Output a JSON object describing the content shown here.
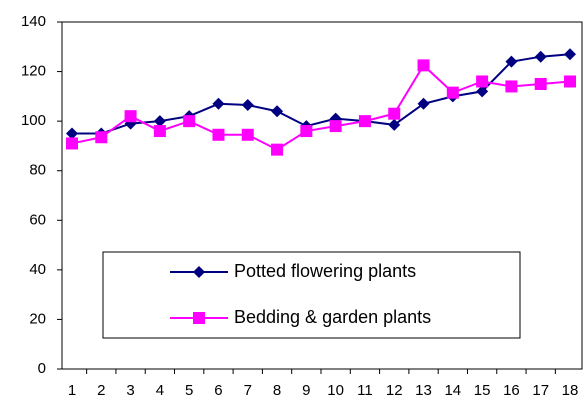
{
  "chart_data": {
    "type": "line",
    "categories": [
      "1",
      "2",
      "3",
      "4",
      "5",
      "6",
      "7",
      "8",
      "9",
      "10",
      "11",
      "12",
      "13",
      "14",
      "15",
      "16",
      "17",
      "18"
    ],
    "series": [
      {
        "name": "Potted flowering plants",
        "color": "#000080",
        "marker": "diamond",
        "values": [
          95,
          95,
          99,
          100,
          102,
          107,
          106.5,
          104,
          98,
          101,
          100,
          98.5,
          107,
          110,
          112,
          124,
          126,
          127
        ]
      },
      {
        "name": "Bedding & garden plants",
        "color": "#ff00ff",
        "marker": "square",
        "values": [
          91,
          93.5,
          102,
          96,
          100,
          94.5,
          94.5,
          88.5,
          96,
          98,
          100,
          103,
          122.5,
          111.5,
          116,
          114,
          115,
          116
        ]
      }
    ],
    "ylim": [
      0,
      140
    ],
    "yticks": [
      0,
      20,
      40,
      60,
      80,
      100,
      120,
      140
    ],
    "grid": false
  }
}
